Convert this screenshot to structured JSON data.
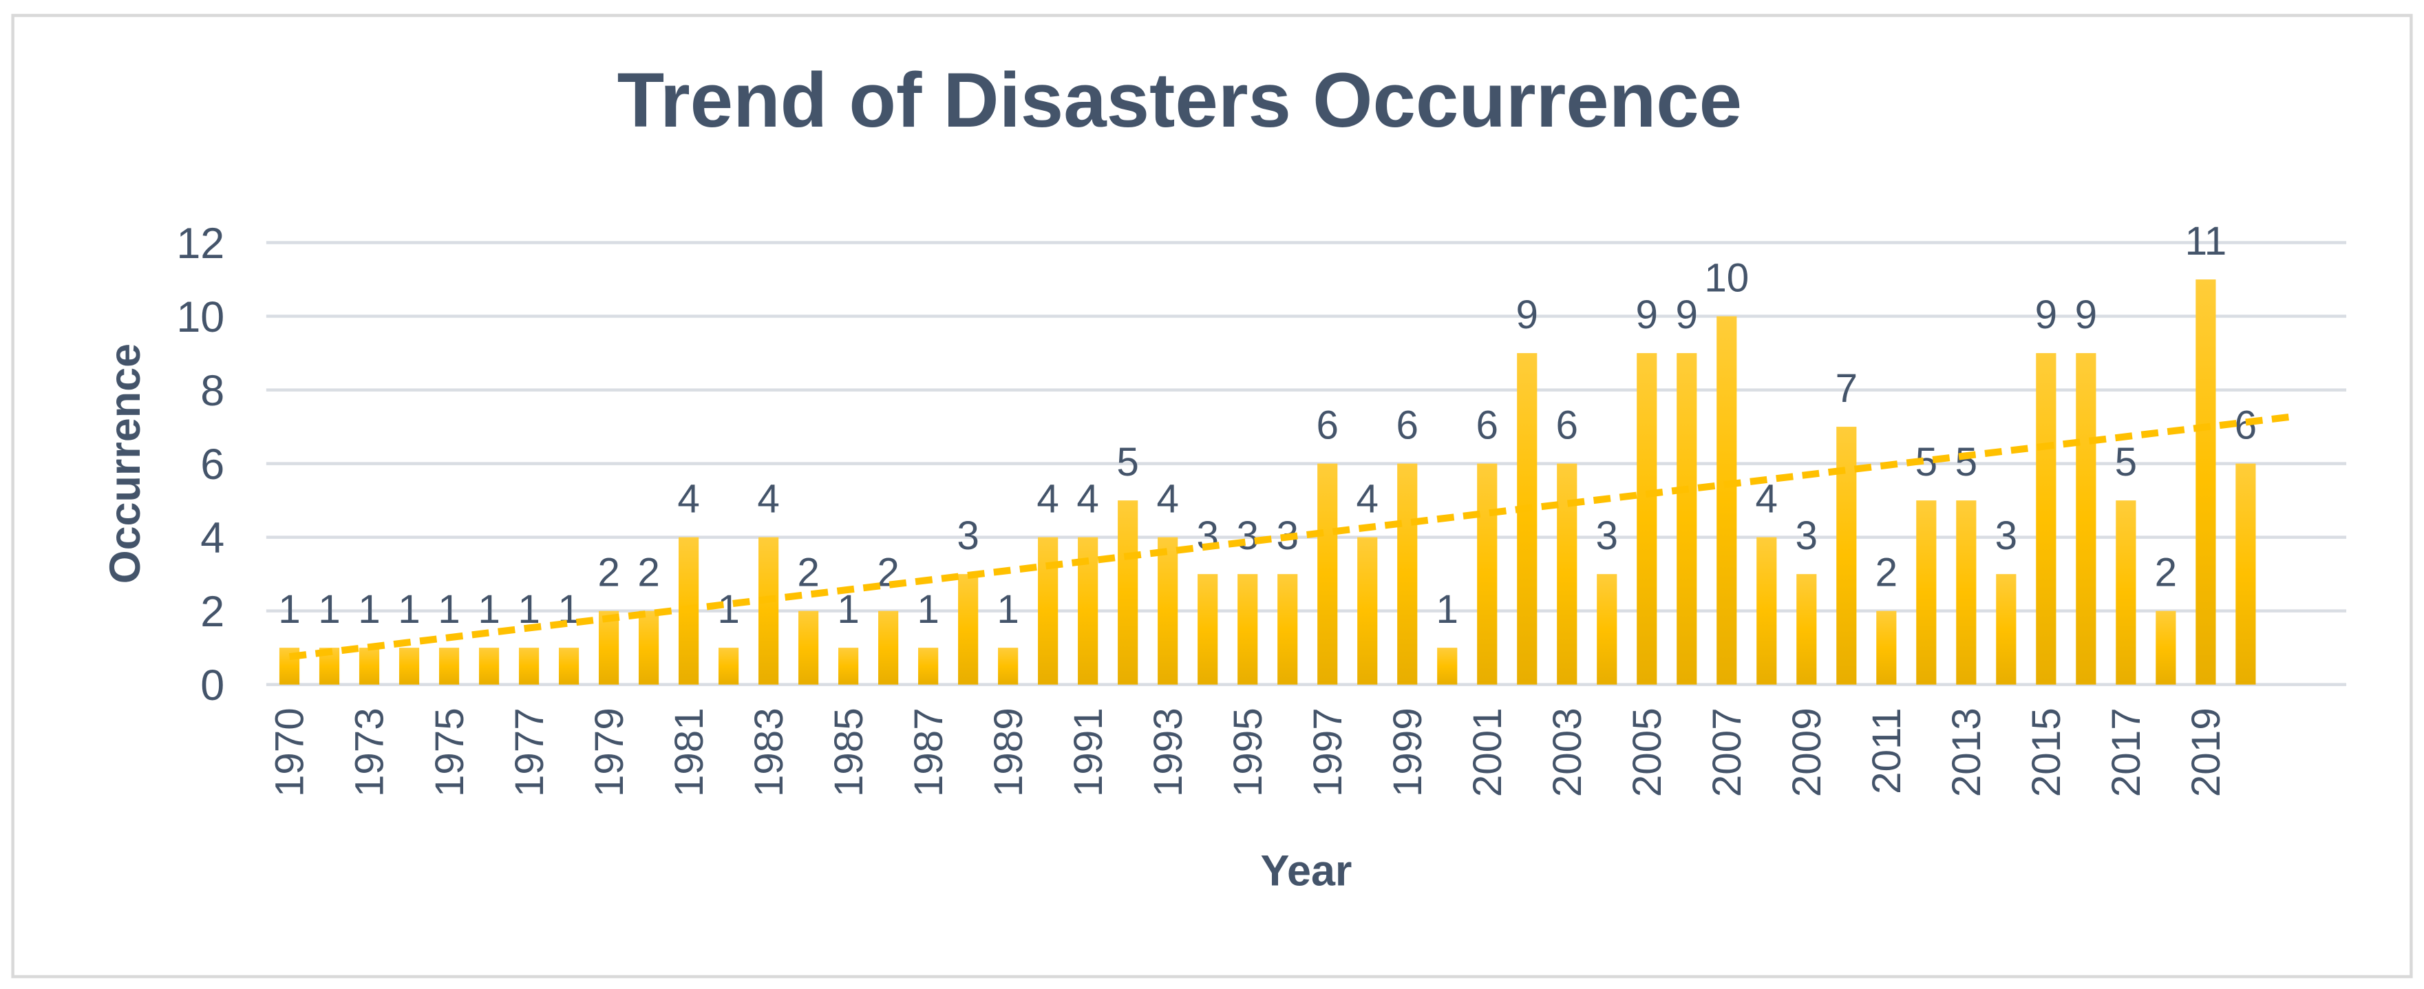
{
  "chart_data": {
    "type": "bar",
    "title": "Trend of Disasters Occurrence",
    "x_label": "Year",
    "y_label": "Occurrence",
    "categories": [
      "1970",
      null,
      "1973",
      null,
      "1975",
      null,
      "1977",
      null,
      "1979",
      null,
      "1981",
      null,
      "1983",
      null,
      "1985",
      null,
      "1987",
      null,
      "1989",
      null,
      "1991",
      null,
      "1993",
      null,
      "1995",
      null,
      "1997",
      null,
      "1999",
      null,
      "2001",
      null,
      "2003",
      null,
      "2005",
      null,
      "2007",
      null,
      "2009",
      null,
      "2011",
      null,
      "2013",
      null,
      "2015",
      null,
      "2017",
      null,
      "2019",
      null
    ],
    "values": [
      1,
      1,
      1,
      1,
      1,
      1,
      1,
      1,
      2,
      2,
      4,
      1,
      4,
      2,
      1,
      2,
      1,
      3,
      1,
      4,
      4,
      5,
      4,
      3,
      3,
      3,
      6,
      4,
      6,
      1,
      6,
      9,
      6,
      3,
      9,
      9,
      10,
      4,
      3,
      7,
      2,
      5,
      5,
      3,
      9,
      9,
      5,
      2,
      11,
      6
    ],
    "color": "#ffc000",
    "ylim": [
      0,
      12
    ],
    "yticks": [
      0,
      2,
      4,
      6,
      8,
      10,
      12
    ],
    "grid": true,
    "trendline": true
  }
}
